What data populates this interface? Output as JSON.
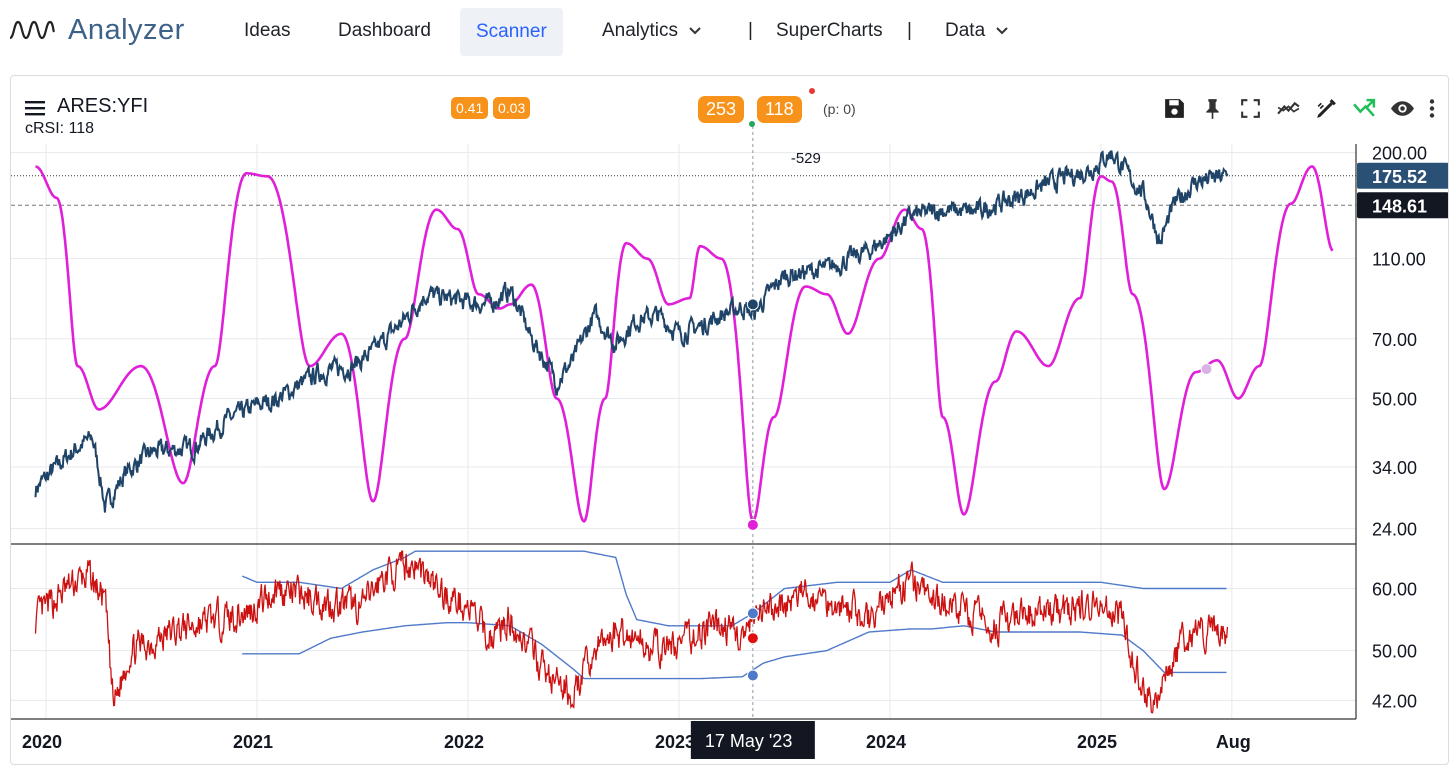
{
  "nav": {
    "logo_text": "Analyzer",
    "items": [
      {
        "label": "Ideas"
      },
      {
        "label": "Dashboard"
      },
      {
        "label": "Scanner",
        "active": true
      },
      {
        "label": "Analytics",
        "dropdown": true
      },
      {
        "label": "SuperCharts"
      },
      {
        "label": "Data",
        "dropdown": true
      }
    ],
    "separator": "|"
  },
  "chart_header": {
    "symbol": "ARES:YFI",
    "indicator": "cRSI: 118",
    "badges_small": [
      "0.41",
      "0.03"
    ],
    "badges_large": [
      "253",
      "118"
    ],
    "pnote": "(p: 0)",
    "accent_color": "#f7931a"
  },
  "toolbar": {
    "icons": [
      "save-icon",
      "pin-icon",
      "fullscreen-icon",
      "indicator-icon",
      "drawing-icon",
      "trend-up-icon",
      "eye-icon",
      "more-icon"
    ]
  },
  "chart_data": [
    {
      "type": "line",
      "scale": "log",
      "y_ticks": [
        "200.00",
        "110.00",
        "70.00",
        "50.00",
        "34.00",
        "24.00"
      ],
      "ylim": [
        22,
        210
      ],
      "price_labels": [
        {
          "value": "175.52",
          "color": "#2b5076"
        },
        {
          "value": "148.61",
          "color": "#131722"
        }
      ],
      "crosshair_annotation": "-529",
      "series": [
        {
          "type": "price",
          "color": "#1f4468",
          "x_start": 2020.0,
          "x_end": 2025.6,
          "anchors": [
            [
              2019.95,
              30
            ],
            [
              2020.05,
              34
            ],
            [
              2020.15,
              38
            ],
            [
              2020.22,
              40
            ],
            [
              2020.28,
              27
            ],
            [
              2020.38,
              33
            ],
            [
              2020.5,
              37
            ],
            [
              2020.7,
              38
            ],
            [
              2020.85,
              44
            ],
            [
              2021.0,
              48
            ],
            [
              2021.1,
              50
            ],
            [
              2021.3,
              58
            ],
            [
              2021.45,
              60
            ],
            [
              2021.55,
              65
            ],
            [
              2021.7,
              78
            ],
            [
              2021.8,
              90
            ],
            [
              2021.9,
              88
            ],
            [
              2022.0,
              86
            ],
            [
              2022.1,
              85
            ],
            [
              2022.2,
              92
            ],
            [
              2022.3,
              70
            ],
            [
              2022.42,
              55
            ],
            [
              2022.5,
              62
            ],
            [
              2022.6,
              80
            ],
            [
              2022.7,
              68
            ],
            [
              2022.8,
              78
            ],
            [
              2022.9,
              80
            ],
            [
              2023.0,
              72
            ],
            [
              2023.1,
              75
            ],
            [
              2023.2,
              80
            ],
            [
              2023.3,
              84
            ],
            [
              2023.35,
              80
            ],
            [
              2023.5,
              100
            ],
            [
              2023.7,
              104
            ],
            [
              2023.9,
              115
            ],
            [
              2024.0,
              125
            ],
            [
              2024.1,
              140
            ],
            [
              2024.25,
              145
            ],
            [
              2024.4,
              143
            ],
            [
              2024.6,
              155
            ],
            [
              2024.8,
              172
            ],
            [
              2024.95,
              182
            ],
            [
              2025.05,
              200
            ],
            [
              2025.15,
              170
            ],
            [
              2025.2,
              160
            ],
            [
              2025.28,
              120
            ],
            [
              2025.35,
              150
            ],
            [
              2025.45,
              170
            ],
            [
              2025.6,
              175
            ]
          ]
        },
        {
          "type": "cycle",
          "color": "#e020d8",
          "anchors": [
            [
              2019.95,
              185
            ],
            [
              2020.05,
              155
            ],
            [
              2020.15,
              60
            ],
            [
              2020.25,
              47
            ],
            [
              2020.45,
              60
            ],
            [
              2020.65,
              31
            ],
            [
              2020.8,
              60
            ],
            [
              2020.95,
              178
            ],
            [
              2021.05,
              175
            ],
            [
              2021.25,
              60
            ],
            [
              2021.4,
              72
            ],
            [
              2021.55,
              28
            ],
            [
              2021.7,
              70
            ],
            [
              2021.85,
              145
            ],
            [
              2021.95,
              130
            ],
            [
              2022.05,
              90
            ],
            [
              2022.15,
              83
            ],
            [
              2022.2,
              85
            ],
            [
              2022.3,
              95
            ],
            [
              2022.42,
              50
            ],
            [
              2022.55,
              25
            ],
            [
              2022.65,
              50
            ],
            [
              2022.75,
              120
            ],
            [
              2022.85,
              110
            ],
            [
              2022.95,
              85
            ],
            [
              2023.05,
              88
            ],
            [
              2023.1,
              118
            ],
            [
              2023.2,
              110
            ],
            [
              2023.35,
              25
            ],
            [
              2023.45,
              45
            ],
            [
              2023.6,
              94
            ],
            [
              2023.7,
              90
            ],
            [
              2023.8,
              72
            ],
            [
              2023.95,
              110
            ],
            [
              2024.07,
              145
            ],
            [
              2024.15,
              130
            ],
            [
              2024.25,
              45
            ],
            [
              2024.35,
              26
            ],
            [
              2024.5,
              55
            ],
            [
              2024.6,
              73
            ],
            [
              2024.75,
              60
            ],
            [
              2024.9,
              88
            ],
            [
              2025.0,
              175
            ],
            [
              2025.05,
              170
            ],
            [
              2025.15,
              90
            ],
            [
              2025.3,
              30
            ],
            [
              2025.45,
              58
            ],
            [
              2025.55,
              62
            ],
            [
              2025.65,
              50
            ],
            [
              2025.75,
              60
            ],
            [
              2025.9,
              150
            ],
            [
              2026.0,
              185
            ],
            [
              2026.1,
              115
            ]
          ]
        }
      ],
      "markers": [
        {
          "x": 2023.35,
          "y": 85,
          "color": "#1f4468"
        },
        {
          "x": 2023.35,
          "y": 24.5,
          "color": "#e020d8"
        },
        {
          "x": 2025.5,
          "y": 59,
          "color": "#d9b3e6"
        }
      ]
    },
    {
      "type": "line",
      "y_ticks": [
        "60.00",
        "50.00",
        "42.00"
      ],
      "ylim": [
        39,
        67
      ],
      "series": [
        {
          "type": "rsi",
          "color": "#cc1111",
          "x_start": 2019.95,
          "x_end": 2025.6
        },
        {
          "type": "band_upper",
          "color": "#4f79c9",
          "anchors": [
            [
              2020.93,
              62
            ],
            [
              2021.0,
              61
            ],
            [
              2021.2,
              61
            ],
            [
              2021.4,
              60
            ],
            [
              2021.55,
              63
            ],
            [
              2021.7,
              65
            ],
            [
              2021.75,
              66
            ],
            [
              2022.0,
              66
            ],
            [
              2022.4,
              66
            ],
            [
              2022.55,
              66
            ],
            [
              2022.7,
              65
            ],
            [
              2022.75,
              59
            ],
            [
              2022.8,
              55
            ],
            [
              2022.95,
              54
            ],
            [
              2023.25,
              54
            ],
            [
              2023.35,
              56
            ],
            [
              2023.5,
              60
            ],
            [
              2023.75,
              61
            ],
            [
              2024.0,
              61
            ],
            [
              2024.1,
              63
            ],
            [
              2024.25,
              61
            ],
            [
              2025.0,
              61
            ],
            [
              2025.2,
              60
            ],
            [
              2025.6,
              60
            ]
          ]
        },
        {
          "type": "band_lower",
          "color": "#4f79c9",
          "anchors": [
            [
              2020.93,
              49.5
            ],
            [
              2021.1,
              49.5
            ],
            [
              2021.2,
              49.5
            ],
            [
              2021.35,
              52
            ],
            [
              2021.5,
              53
            ],
            [
              2021.7,
              54
            ],
            [
              2021.9,
              54.5
            ],
            [
              2022.0,
              54.5
            ],
            [
              2022.2,
              54
            ],
            [
              2022.35,
              51
            ],
            [
              2022.5,
              47
            ],
            [
              2022.55,
              45.5
            ],
            [
              2022.7,
              45.5
            ],
            [
              2023.1,
              45.5
            ],
            [
              2023.3,
              45.8
            ],
            [
              2023.4,
              48
            ],
            [
              2023.5,
              49
            ],
            [
              2023.7,
              50
            ],
            [
              2023.9,
              53
            ],
            [
              2024.1,
              53.5
            ],
            [
              2024.2,
              53.5
            ],
            [
              2024.35,
              54
            ],
            [
              2024.5,
              53
            ],
            [
              2024.9,
              53
            ],
            [
              2025.1,
              52.5
            ],
            [
              2025.2,
              50
            ],
            [
              2025.3,
              46.5
            ],
            [
              2025.6,
              46.5
            ]
          ]
        }
      ],
      "markers": [
        {
          "x": 2023.35,
          "y": 56,
          "color": "#4f79c9"
        },
        {
          "x": 2023.35,
          "y": 52,
          "color": "#e11010"
        },
        {
          "x": 2023.35,
          "y": 46,
          "color": "#4f79c9"
        }
      ]
    }
  ],
  "x_axis": {
    "labels": [
      {
        "text": "2020",
        "x": 2020.0
      },
      {
        "text": "2021",
        "x": 2021.0
      },
      {
        "text": "2022",
        "x": 2022.0
      },
      {
        "text": "2023",
        "x": 2023.0
      },
      {
        "text": "2024",
        "x": 2024.0
      },
      {
        "text": "2025",
        "x": 2025.0
      },
      {
        "text": "Aug",
        "x": 2025.62
      }
    ],
    "crosshair_label": "17 May '23"
  }
}
